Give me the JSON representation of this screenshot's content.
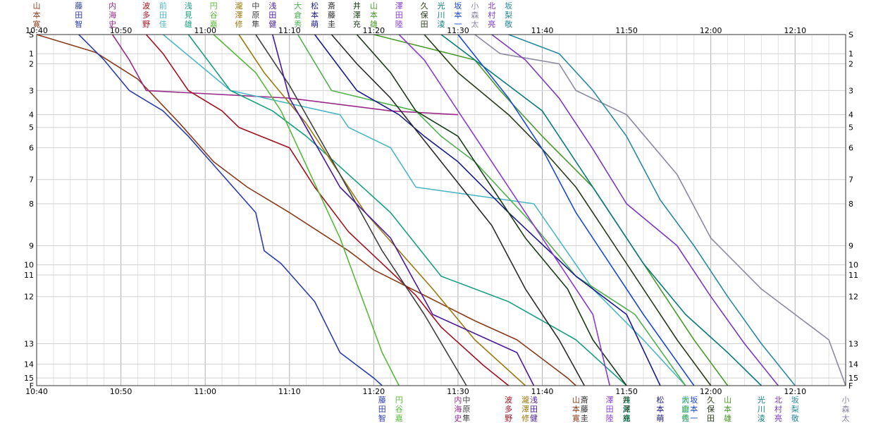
{
  "chart_data": {
    "type": "line",
    "title": "",
    "x_ticks": [
      "10:40",
      "10:50",
      "11:00",
      "11:10",
      "11:20",
      "11:30",
      "11:40",
      "11:50",
      "12:00",
      "12:10"
    ],
    "x_range_min": [
      0,
      96
    ],
    "y_ticks": [
      "S",
      "1",
      "2",
      "3",
      "4",
      "5",
      "6",
      "7",
      "8",
      "9",
      "10",
      "11",
      "12",
      "13",
      "14",
      "15",
      "F"
    ],
    "y_positions": [
      0,
      1.5,
      2.3,
      4.4,
      6.3,
      7.3,
      8.9,
      11.4,
      13.3,
      16.6,
      18.1,
      18.9,
      20.6,
      24.3,
      25.9,
      27,
      27.6
    ],
    "series": [
      {
        "name": "山本寛",
        "color": "#8a3b1a",
        "points": [
          [
            0,
            0
          ],
          [
            7,
            1.4
          ],
          [
            12,
            3.5
          ],
          [
            17,
            7
          ],
          [
            21,
            10
          ],
          [
            25,
            12
          ],
          [
            30,
            14
          ],
          [
            37,
            17
          ],
          [
            40,
            18.5
          ],
          [
            46,
            20.5
          ],
          [
            52,
            22.5
          ],
          [
            57,
            24
          ],
          [
            61,
            26
          ],
          [
            63,
            27
          ],
          [
            64,
            27.6
          ]
        ]
      },
      {
        "name": "藤田智",
        "color": "#2c3ea8",
        "points": [
          [
            5,
            0
          ],
          [
            8,
            2
          ],
          [
            11,
            4.4
          ],
          [
            15,
            6
          ],
          [
            18,
            8
          ],
          [
            22,
            11
          ],
          [
            26,
            14
          ],
          [
            27,
            17
          ],
          [
            29,
            18
          ],
          [
            33,
            21
          ],
          [
            36,
            25
          ],
          [
            40,
            27
          ],
          [
            41,
            27.6
          ]
        ]
      },
      {
        "name": "内海史",
        "color": "#9a2a8a",
        "points": [
          [
            9,
            0
          ],
          [
            11,
            2
          ],
          [
            13,
            4.4
          ],
          [
            30,
            5
          ],
          [
            42,
            6
          ],
          [
            50,
            6.3
          ]
        ]
      },
      {
        "name": "波多野",
        "color": "#a01020",
        "points": [
          [
            13,
            0
          ],
          [
            15,
            1.5
          ],
          [
            18,
            4.4
          ],
          [
            22,
            6
          ],
          [
            24,
            7.3
          ],
          [
            30,
            8.9
          ],
          [
            33,
            12
          ],
          [
            37,
            15.5
          ],
          [
            41,
            18
          ],
          [
            45,
            20.5
          ],
          [
            48,
            23
          ],
          [
            53,
            26
          ],
          [
            56,
            27.6
          ]
        ]
      },
      {
        "name": "前田佳",
        "color": "#4cb6c6",
        "points": [
          [
            15,
            0
          ],
          [
            23,
            4.4
          ],
          [
            36,
            6.3
          ],
          [
            37,
            7.3
          ],
          [
            42,
            8.9
          ],
          [
            45,
            12
          ],
          [
            59,
            13.3
          ],
          [
            66,
            20
          ],
          [
            72,
            24
          ],
          [
            77,
            27.6
          ]
        ]
      },
      {
        "name": "浅見雄",
        "color": "#1aa080",
        "points": [
          [
            18,
            0
          ],
          [
            23,
            4.4
          ],
          [
            28,
            6
          ],
          [
            32,
            8
          ],
          [
            42,
            14
          ],
          [
            48,
            19
          ],
          [
            56,
            21
          ],
          [
            64,
            24
          ],
          [
            70,
            27.6
          ]
        ]
      },
      {
        "name": "円谷嘉",
        "color": "#58b83a",
        "points": [
          [
            21,
            0
          ],
          [
            26,
            3
          ],
          [
            29,
            6
          ],
          [
            36,
            16
          ],
          [
            41,
            25
          ],
          [
            43,
            27.6
          ]
        ]
      },
      {
        "name": "瀧澤修",
        "color": "#9a7a10",
        "points": [
          [
            24,
            0
          ],
          [
            27,
            3
          ],
          [
            32,
            7
          ],
          [
            39,
            14
          ],
          [
            47,
            20
          ],
          [
            52,
            24
          ],
          [
            58,
            27.6
          ]
        ]
      },
      {
        "name": "中原隼",
        "color": "#404040",
        "points": [
          [
            26,
            0
          ],
          [
            30,
            4
          ],
          [
            36,
            11
          ],
          [
            41,
            17
          ],
          [
            46,
            22
          ],
          [
            51,
            27.6
          ]
        ]
      },
      {
        "name": "浅田健",
        "color": "#4a1a9a",
        "points": [
          [
            28,
            0
          ],
          [
            30,
            5
          ],
          [
            36,
            12
          ],
          [
            42,
            16
          ],
          [
            47,
            22
          ],
          [
            57,
            25
          ],
          [
            59,
            27.6
          ]
        ]
      },
      {
        "name": "大倉秀",
        "color": "#50b050",
        "points": [
          [
            31,
            0
          ],
          [
            35,
            4.4
          ],
          [
            45,
            6
          ],
          [
            48,
            8
          ],
          [
            52,
            10
          ],
          [
            59,
            15
          ],
          [
            64,
            19
          ],
          [
            71,
            22
          ],
          [
            77,
            27.6
          ]
        ]
      },
      {
        "name": "松本萌",
        "color": "#1a1a8a",
        "points": [
          [
            33,
            0
          ],
          [
            38,
            4.4
          ],
          [
            43,
            6.3
          ],
          [
            46,
            8
          ],
          [
            50,
            10
          ],
          [
            56,
            14
          ],
          [
            64,
            19
          ],
          [
            70,
            22
          ],
          [
            74,
            27.6
          ]
        ]
      },
      {
        "name": "斎藤圭",
        "color": "#2a2a2a",
        "points": [
          [
            35,
            0
          ],
          [
            38,
            2.3
          ],
          [
            42,
            5
          ],
          [
            48,
            10
          ],
          [
            54,
            15
          ],
          [
            58,
            20
          ],
          [
            62,
            24
          ],
          [
            65,
            27.6
          ]
        ]
      },
      {
        "name": "井澤充",
        "color": "#1a3a1a",
        "points": [
          [
            38,
            0
          ],
          [
            42,
            3
          ],
          [
            45,
            6
          ],
          [
            50,
            8
          ],
          [
            54,
            12
          ],
          [
            58,
            16
          ],
          [
            63,
            20
          ],
          [
            66,
            24
          ],
          [
            70,
            27.6
          ]
        ]
      },
      {
        "name": "山本雄",
        "color": "#4a9a2a",
        "points": [
          [
            40,
            0
          ],
          [
            52,
            2
          ],
          [
            55,
            4.4
          ],
          [
            60,
            8
          ],
          [
            66,
            12
          ],
          [
            70,
            16
          ],
          [
            74,
            20
          ],
          [
            78,
            24
          ],
          [
            82,
            27.6
          ]
        ]
      },
      {
        "name": "澤田陸",
        "color": "#8a3ad0",
        "points": [
          [
            43,
            0
          ],
          [
            46,
            2
          ],
          [
            50,
            6
          ],
          [
            54,
            10
          ],
          [
            58,
            14
          ],
          [
            62,
            18
          ],
          [
            66,
            22
          ],
          [
            68,
            27.6
          ]
        ]
      },
      {
        "name": "久保田",
        "color": "#2a3a1a",
        "points": [
          [
            46,
            0
          ],
          [
            50,
            3
          ],
          [
            56,
            6.3
          ],
          [
            60,
            9
          ],
          [
            64,
            12
          ],
          [
            68,
            16
          ],
          [
            72,
            20
          ],
          [
            76,
            24
          ],
          [
            80,
            27.6
          ]
        ]
      },
      {
        "name": "光川淩",
        "color": "#0a7a7a",
        "points": [
          [
            48,
            0
          ],
          [
            54,
            3
          ],
          [
            60,
            6
          ],
          [
            64,
            10
          ],
          [
            68,
            14
          ],
          [
            72,
            18
          ],
          [
            77,
            22
          ],
          [
            82,
            25
          ],
          [
            86,
            27.6
          ]
        ]
      },
      {
        "name": "坂本一",
        "color": "#1a4ad0",
        "points": [
          [
            50,
            0
          ],
          [
            56,
            5
          ],
          [
            60,
            9
          ],
          [
            64,
            14
          ],
          [
            68,
            18
          ],
          [
            72,
            22
          ],
          [
            78,
            27.6
          ]
        ]
      },
      {
        "name": "小森太",
        "color": "#8a8aa0",
        "points": [
          [
            52,
            0
          ],
          [
            55,
            1.5
          ],
          [
            62,
            2.3
          ],
          [
            64,
            4.4
          ],
          [
            70,
            6.3
          ],
          [
            76,
            11
          ],
          [
            80,
            16
          ],
          [
            86,
            20
          ],
          [
            94,
            24
          ],
          [
            96,
            27.6
          ]
        ]
      },
      {
        "name": "北村亮",
        "color": "#7a3ac0",
        "points": [
          [
            54,
            0
          ],
          [
            58,
            2
          ],
          [
            62,
            5
          ],
          [
            66,
            9
          ],
          [
            70,
            13.3
          ],
          [
            76,
            16.6
          ],
          [
            80,
            20.6
          ],
          [
            84,
            24.3
          ],
          [
            88,
            27.6
          ]
        ]
      },
      {
        "name": "坂梨敬",
        "color": "#2a8aa0",
        "points": [
          [
            56,
            0
          ],
          [
            62,
            1.5
          ],
          [
            66,
            4.4
          ],
          [
            70,
            8
          ],
          [
            74,
            13
          ],
          [
            78,
            16.6
          ],
          [
            82,
            20.6
          ],
          [
            86,
            24.3
          ],
          [
            90,
            27.6
          ]
        ]
      }
    ]
  }
}
